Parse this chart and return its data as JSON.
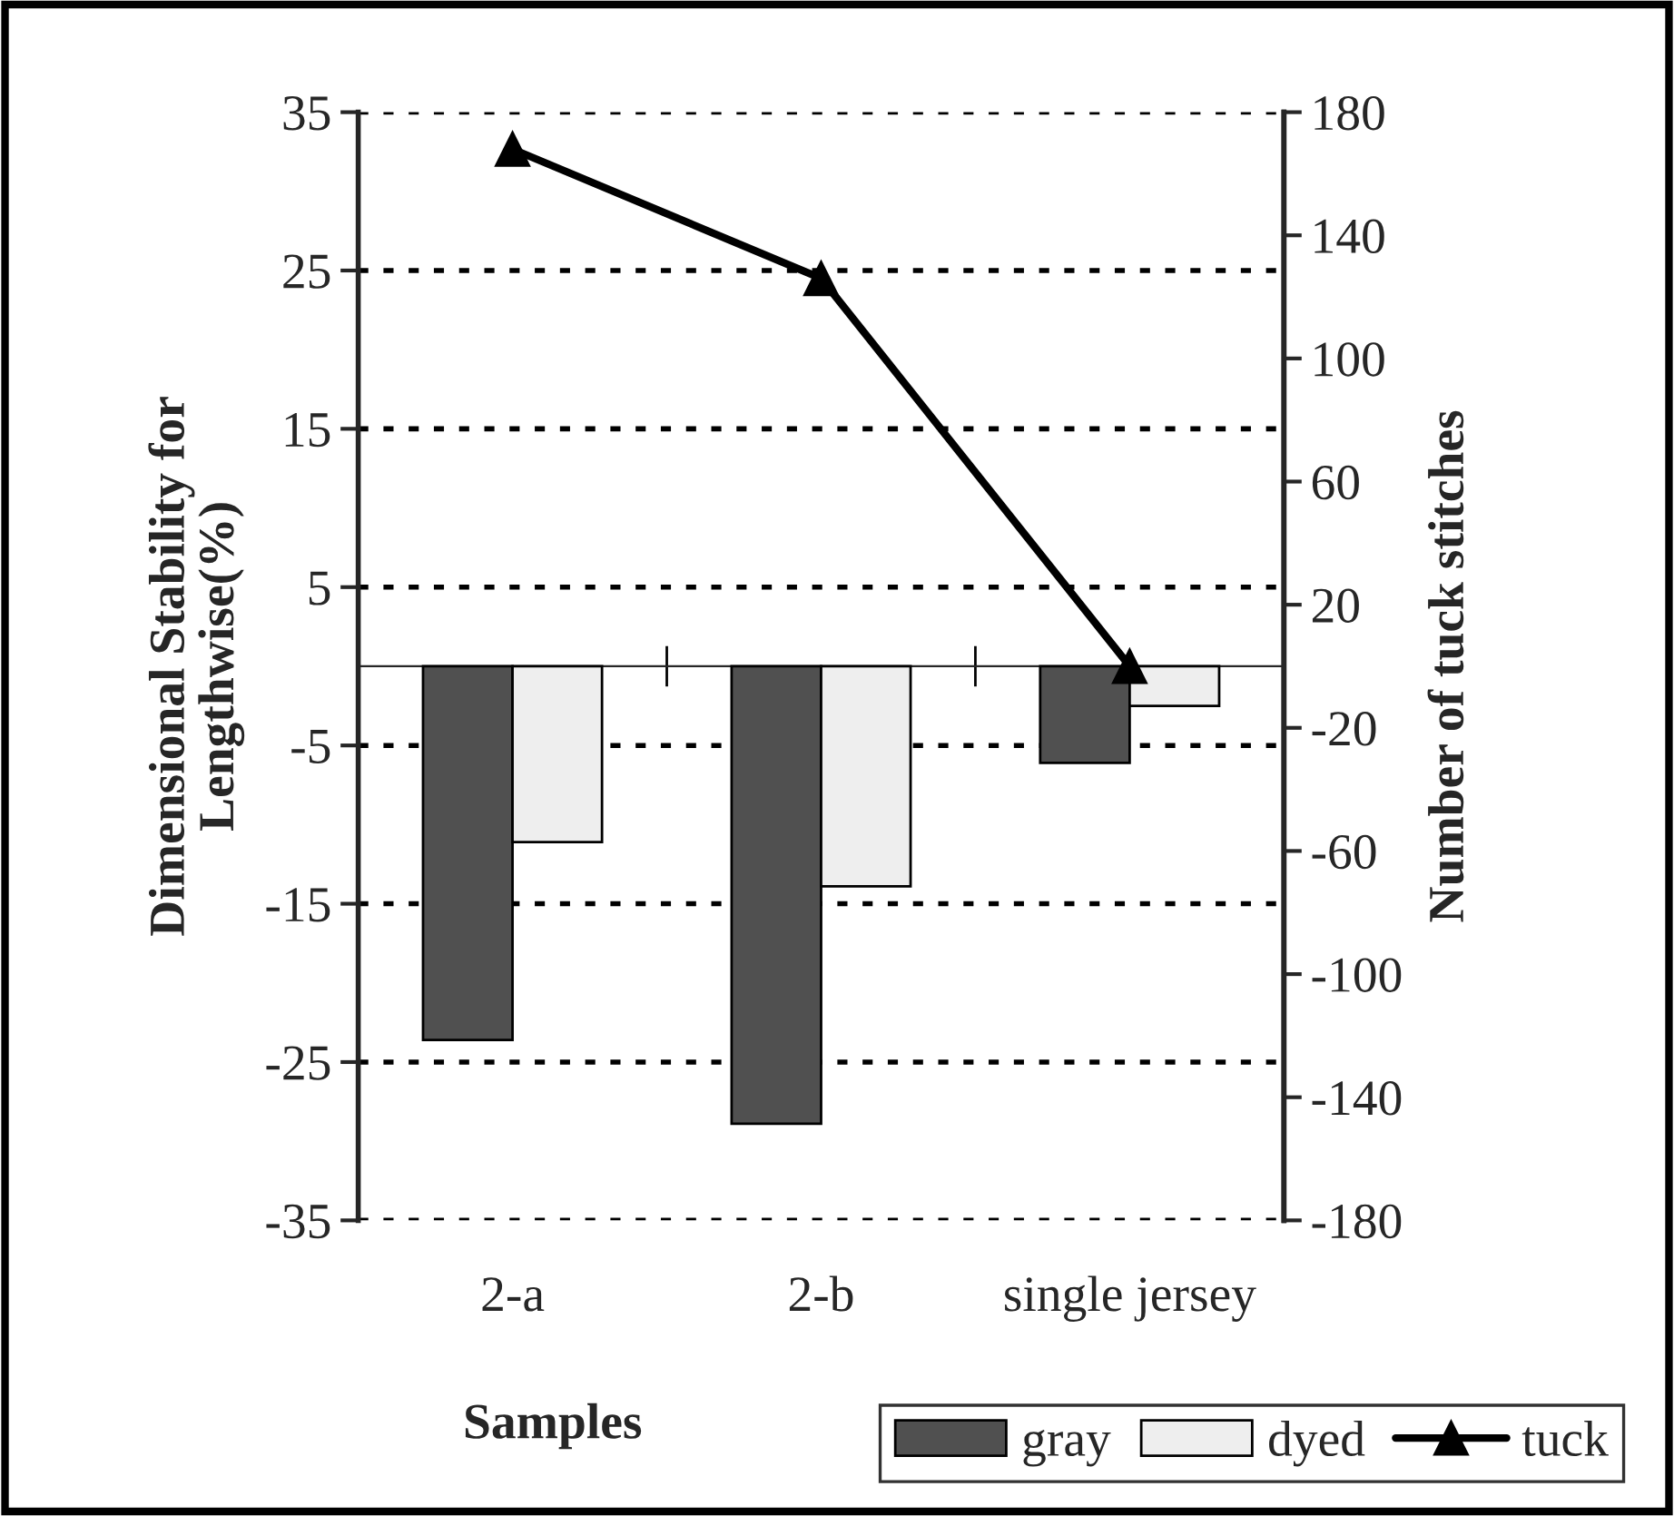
{
  "chart_data": {
    "type": "bar",
    "xlabel": "Samples",
    "ylabel": "Dimensional Stability for\nLengthwise(%)",
    "y2label": "Number of tuck stitches",
    "categories": [
      "2-a",
      "2-b",
      "single jersey"
    ],
    "series": [
      {
        "name": "gray",
        "color": "#505050",
        "values": [
          -23.6,
          -28.9,
          -6.1
        ]
      },
      {
        "name": "dyed",
        "color": "#eeeeee",
        "values": [
          -11.1,
          -13.9,
          -2.5
        ]
      },
      {
        "name": "tuck",
        "type": "line",
        "axis": "y2",
        "color": "#000000",
        "values": [
          168,
          126,
          0
        ],
        "marker": "triangle",
        "line_style": "solid"
      }
    ],
    "ylim": [
      -35,
      35
    ],
    "yticks": [
      -35,
      -25,
      -15,
      -5,
      5,
      15,
      25,
      35
    ],
    "y2lim": [
      -180,
      180
    ],
    "y2ticks": [
      -180,
      -140,
      -100,
      -60,
      -20,
      20,
      60,
      100,
      140,
      180
    ],
    "grid": "y",
    "legend": "bottom right"
  }
}
